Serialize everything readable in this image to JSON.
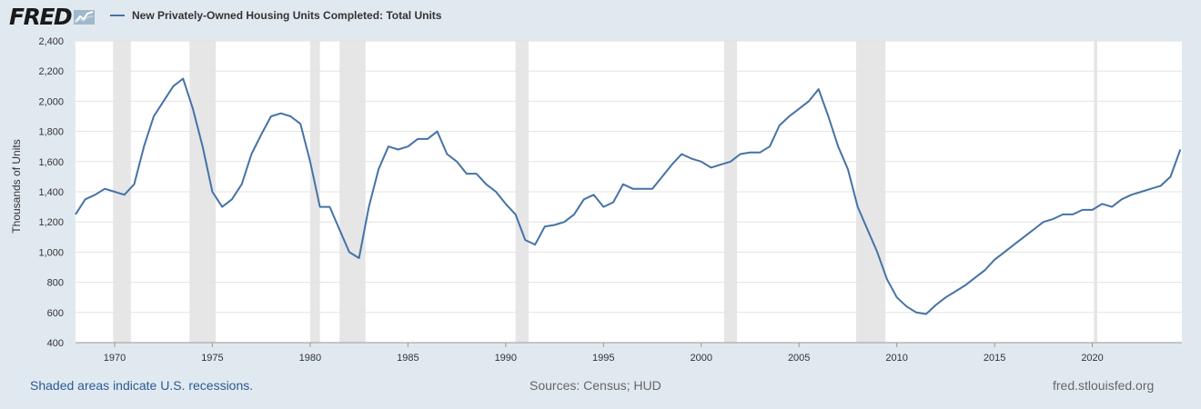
{
  "header": {
    "logo_text": "FRED",
    "legend_label": "New Privately-Owned Housing Units Completed: Total Units",
    "series_color": "#4572a7"
  },
  "footer": {
    "recession_note": "Shaded areas indicate U.S. recessions.",
    "sources": "Sources: Census; HUD",
    "site": "fred.stlouisfed.org"
  },
  "chart_data": {
    "type": "line",
    "title": "",
    "xlabel": "",
    "ylabel": "Thousands of Units",
    "xlim": [
      1968.0,
      2024.58
    ],
    "ylim": [
      400,
      2400
    ],
    "y_ticks": [
      400,
      600,
      800,
      1000,
      1200,
      1400,
      1600,
      1800,
      2000,
      2200,
      2400
    ],
    "y_tick_labels": [
      "400",
      "600",
      "800",
      "1,000",
      "1,200",
      "1,400",
      "1,600",
      "1,800",
      "2,000",
      "2,200",
      "2,400"
    ],
    "x_ticks": [
      1970,
      1975,
      1980,
      1985,
      1990,
      1995,
      2000,
      2005,
      2010,
      2015,
      2020
    ],
    "x_tick_labels": [
      "1970",
      "1975",
      "1980",
      "1985",
      "1990",
      "1995",
      "2000",
      "2005",
      "2010",
      "2015",
      "2020"
    ],
    "grid": "horizontal",
    "recessions": [
      [
        1969.92,
        1970.83
      ],
      [
        1973.83,
        1975.17
      ],
      [
        1980.0,
        1980.5
      ],
      [
        1981.5,
        1982.83
      ],
      [
        1990.5,
        1991.17
      ],
      [
        2001.17,
        2001.83
      ],
      [
        2007.92,
        2009.42
      ],
      [
        2020.08,
        2020.25
      ]
    ],
    "series": [
      {
        "name": "New Privately-Owned Housing Units Completed: Total Units",
        "x": [
          1968.0,
          1968.5,
          1969.0,
          1969.5,
          1970.0,
          1970.5,
          1971.0,
          1971.5,
          1972.0,
          1972.5,
          1973.0,
          1973.5,
          1974.0,
          1974.5,
          1975.0,
          1975.5,
          1976.0,
          1976.5,
          1977.0,
          1977.5,
          1978.0,
          1978.5,
          1979.0,
          1979.5,
          1980.0,
          1980.5,
          1981.0,
          1981.5,
          1982.0,
          1982.5,
          1983.0,
          1983.5,
          1984.0,
          1984.5,
          1985.0,
          1985.5,
          1986.0,
          1986.5,
          1987.0,
          1987.5,
          1988.0,
          1988.5,
          1989.0,
          1989.5,
          1990.0,
          1990.5,
          1991.0,
          1991.5,
          1992.0,
          1992.5,
          1993.0,
          1993.5,
          1994.0,
          1994.5,
          1995.0,
          1995.5,
          1996.0,
          1996.5,
          1997.0,
          1997.5,
          1998.0,
          1998.5,
          1999.0,
          1999.5,
          2000.0,
          2000.5,
          2001.0,
          2001.5,
          2002.0,
          2002.5,
          2003.0,
          2003.5,
          2004.0,
          2004.5,
          2005.0,
          2005.5,
          2006.0,
          2006.5,
          2007.0,
          2007.5,
          2008.0,
          2008.5,
          2009.0,
          2009.5,
          2010.0,
          2010.5,
          2011.0,
          2011.5,
          2012.0,
          2012.5,
          2013.0,
          2013.5,
          2014.0,
          2014.5,
          2015.0,
          2015.5,
          2016.0,
          2016.5,
          2017.0,
          2017.5,
          2018.0,
          2018.5,
          2019.0,
          2019.5,
          2020.0,
          2020.5,
          2021.0,
          2021.5,
          2022.0,
          2022.5,
          2023.0,
          2023.5,
          2024.0,
          2024.5
        ],
        "values": [
          1250,
          1350,
          1380,
          1420,
          1400,
          1380,
          1450,
          1700,
          1900,
          2000,
          2100,
          2150,
          1950,
          1700,
          1400,
          1300,
          1350,
          1450,
          1650,
          1780,
          1900,
          1920,
          1900,
          1850,
          1600,
          1300,
          1300,
          1150,
          1000,
          960,
          1300,
          1550,
          1700,
          1680,
          1700,
          1750,
          1750,
          1800,
          1650,
          1600,
          1520,
          1520,
          1450,
          1400,
          1320,
          1250,
          1080,
          1050,
          1170,
          1180,
          1200,
          1250,
          1350,
          1380,
          1300,
          1330,
          1450,
          1420,
          1420,
          1420,
          1500,
          1580,
          1650,
          1620,
          1600,
          1560,
          1580,
          1600,
          1650,
          1660,
          1660,
          1700,
          1840,
          1900,
          1950,
          2000,
          2080,
          1900,
          1700,
          1550,
          1300,
          1150,
          1000,
          820,
          700,
          640,
          600,
          590,
          650,
          700,
          740,
          780,
          830,
          880,
          950,
          1000,
          1050,
          1100,
          1150,
          1200,
          1220,
          1250,
          1250,
          1280,
          1280,
          1320,
          1300,
          1350,
          1380,
          1400,
          1420,
          1440,
          1500,
          1680
        ]
      }
    ]
  }
}
